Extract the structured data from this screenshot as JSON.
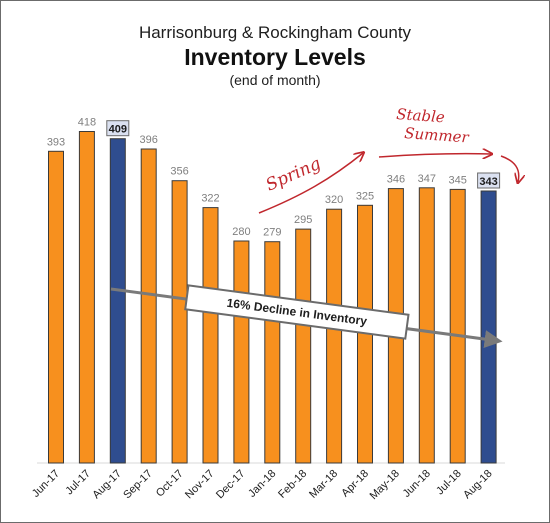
{
  "colors": {
    "bar": "#f7901e",
    "bar_highlight": "#2f4d8f",
    "annotation": "#c0272d",
    "label_box": "#dbe1f1"
  },
  "chart_data": {
    "type": "bar",
    "title": "Harrisonburg & Rockingham County",
    "subtitle": "Inventory Levels",
    "note": "(end of month)",
    "categories": [
      "Jun-17",
      "Jul-17",
      "Aug-17",
      "Sep-17",
      "Oct-17",
      "Nov-17",
      "Dec-17",
      "Jan-18",
      "Feb-18",
      "Mar-18",
      "Apr-18",
      "May-18",
      "Jun-18",
      "Jul-18",
      "Aug-18"
    ],
    "values": [
      393,
      418,
      409,
      396,
      356,
      322,
      280,
      279,
      295,
      320,
      325,
      346,
      347,
      345,
      343
    ],
    "highlighted": [
      "Aug-17",
      "Aug-18"
    ],
    "xlabel": "",
    "ylabel": "",
    "ylim": [
      0,
      430
    ],
    "grid": false,
    "legend": "none",
    "annotations": {
      "spring": "Spring",
      "stable_summer_line1": "Stable",
      "stable_summer_line2": "Summer",
      "decline": "16% Decline in Inventory"
    }
  }
}
